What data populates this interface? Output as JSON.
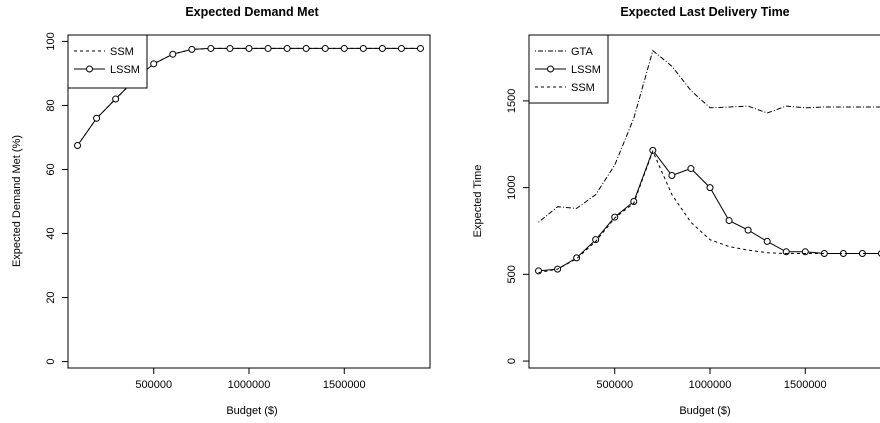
{
  "chart_data": [
    {
      "type": "line",
      "title": "Expected Demand Met",
      "xlabel": "Budget ($)",
      "ylabel": "Expected Demand Met (%)",
      "xlim": [
        50000,
        1950000
      ],
      "ylim": [
        -2,
        102
      ],
      "xticks": [
        500000,
        1000000,
        1500000
      ],
      "xtick_labels": [
        "500000",
        "1000000",
        "1500000"
      ],
      "yticks": [
        0,
        20,
        40,
        60,
        80,
        100
      ],
      "ytick_labels": [
        "0",
        "20",
        "40",
        "60",
        "80",
        "100"
      ],
      "legend_position": "top-left",
      "x": [
        100000,
        200000,
        300000,
        400000,
        500000,
        600000,
        700000,
        800000,
        900000,
        1000000,
        1100000,
        1200000,
        1300000,
        1400000,
        1500000,
        1600000,
        1700000,
        1800000,
        1900000
      ],
      "series": [
        {
          "name": "SSM",
          "style": "dashed",
          "marker": "none",
          "values": [
            67.5,
            76,
            82,
            88,
            93,
            96,
            97.5,
            97.8,
            97.8,
            97.8,
            97.8,
            97.8,
            97.8,
            97.8,
            97.8,
            97.8,
            97.8,
            97.8,
            97.8
          ]
        },
        {
          "name": "LSSM",
          "style": "solid",
          "marker": "circle",
          "values": [
            67.5,
            76,
            82,
            88,
            93,
            96,
            97.5,
            97.8,
            97.8,
            97.8,
            97.8,
            97.8,
            97.8,
            97.8,
            97.8,
            97.8,
            97.8,
            97.8,
            97.8
          ]
        }
      ]
    },
    {
      "type": "line",
      "title": "Expected Last Delivery Time",
      "xlabel": "Budget ($)",
      "ylabel": "Expected Time",
      "xlim": [
        50000,
        1950000
      ],
      "ylim": [
        -40,
        1880
      ],
      "xticks": [
        500000,
        1000000,
        1500000
      ],
      "xtick_labels": [
        "500000",
        "1000000",
        "1500000"
      ],
      "yticks": [
        0,
        500,
        1000,
        1500
      ],
      "ytick_labels": [
        "0",
        "500",
        "1000",
        "1500"
      ],
      "legend_position": "top-left",
      "x": [
        100000,
        200000,
        300000,
        400000,
        500000,
        600000,
        700000,
        800000,
        900000,
        1000000,
        1100000,
        1200000,
        1300000,
        1400000,
        1500000,
        1600000,
        1700000,
        1800000,
        1900000
      ],
      "series": [
        {
          "name": "GTA",
          "style": "dotdash",
          "marker": "none",
          "values": [
            800,
            890,
            880,
            960,
            1130,
            1400,
            1790,
            1700,
            1560,
            1460,
            1465,
            1470,
            1430,
            1470,
            1460,
            1465,
            1465,
            1465,
            1465
          ]
        },
        {
          "name": "LSSM",
          "style": "solid",
          "marker": "circle",
          "values": [
            520,
            530,
            595,
            700,
            830,
            920,
            1215,
            1070,
            1110,
            1000,
            810,
            755,
            690,
            630,
            630,
            620,
            620,
            620,
            620
          ]
        },
        {
          "name": "SSM",
          "style": "dashed",
          "marker": "none",
          "values": [
            510,
            530,
            590,
            690,
            825,
            910,
            1210,
            960,
            800,
            700,
            660,
            640,
            625,
            620,
            620,
            620,
            620,
            620,
            620
          ]
        }
      ]
    }
  ]
}
